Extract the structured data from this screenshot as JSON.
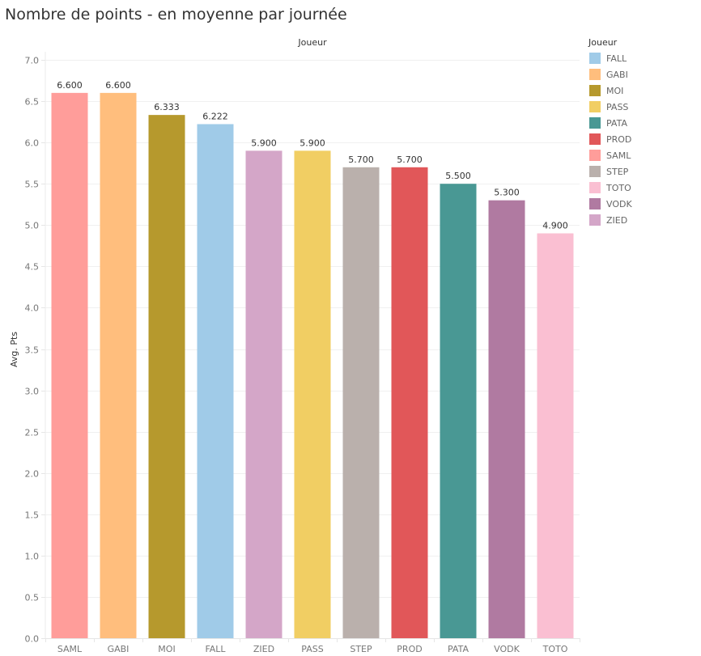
{
  "chart_data": {
    "type": "bar",
    "title": "Nombre de points - en moyenne par journée",
    "column_header": "Joueur",
    "xlabel": "",
    "ylabel": "Avg. Pts",
    "ylim": [
      0,
      7
    ],
    "yticks": [
      0.0,
      0.5,
      1.0,
      1.5,
      2.0,
      2.5,
      3.0,
      3.5,
      4.0,
      4.5,
      5.0,
      5.5,
      6.0,
      6.5,
      7.0
    ],
    "grid": true,
    "categories": [
      "SAML",
      "GABI",
      "MOI",
      "FALL",
      "ZIED",
      "PASS",
      "STEP",
      "PROD",
      "PATA",
      "VODK",
      "TOTO"
    ],
    "values": [
      6.6,
      6.6,
      6.333,
      6.222,
      5.9,
      5.9,
      5.7,
      5.7,
      5.5,
      5.3,
      4.9
    ],
    "data_labels": [
      "6.600",
      "6.600",
      "6.333",
      "6.222",
      "5.900",
      "5.900",
      "5.700",
      "5.700",
      "5.500",
      "5.300",
      "4.900"
    ],
    "colors": {
      "FALL": "#a0cbe8",
      "GABI": "#ffbe7d",
      "MOI": "#b6992d",
      "PASS": "#f1ce63",
      "PATA": "#499894",
      "PROD": "#e15759",
      "SAML": "#ff9d9a",
      "STEP": "#bab0ac",
      "TOTO": "#fabfd2",
      "VODK": "#b07aa1",
      "ZIED": "#d4a6c8"
    },
    "legend": {
      "title": "Joueur",
      "position": "right",
      "entries": [
        "FALL",
        "GABI",
        "MOI",
        "PASS",
        "PATA",
        "PROD",
        "SAML",
        "STEP",
        "TOTO",
        "VODK",
        "ZIED"
      ]
    }
  }
}
